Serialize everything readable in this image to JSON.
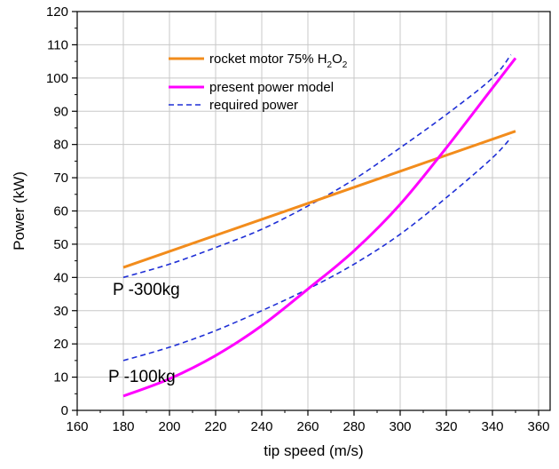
{
  "chart_data": {
    "type": "line",
    "xlabel": "tip speed (m/s)",
    "ylabel": "Power (kW)",
    "xlim": [
      160,
      365
    ],
    "ylim": [
      0,
      120
    ],
    "x_ticks": [
      160,
      180,
      200,
      220,
      240,
      260,
      280,
      300,
      320,
      340,
      360
    ],
    "y_ticks": [
      0,
      10,
      20,
      30,
      40,
      50,
      60,
      70,
      80,
      90,
      100,
      110,
      120
    ],
    "grid": true,
    "legend_position": "top-center",
    "series": [
      {
        "name": "rocket motor 75% H2O2",
        "legend_main": "rocket motor 75% H",
        "legend_sub1": "2",
        "legend_mid": "O",
        "legend_sub2": "2",
        "color": "#f28c1c",
        "style": "solid",
        "x": [
          180,
          350
        ],
        "y": [
          43,
          84
        ]
      },
      {
        "name": "present power model",
        "color": "#ff00ff",
        "style": "solid",
        "x": [
          180,
          200,
          220,
          240,
          260,
          280,
          300,
          320,
          340,
          350
        ],
        "y": [
          4.3,
          9.5,
          16.5,
          25.5,
          36.5,
          48,
          62,
          79,
          97,
          106
        ]
      },
      {
        "name": "required power",
        "color": "#1f2fd6",
        "style": "dashed",
        "curves": [
          {
            "label": "P -300kg",
            "x": [
              180,
              200,
              220,
              240,
              260,
              280,
              300,
              320,
              340,
              348
            ],
            "y": [
              40,
              44,
              49,
              54.5,
              61.5,
              69.5,
              79,
              89,
              100,
              107
            ]
          },
          {
            "label": "P -100kg",
            "x": [
              180,
              200,
              220,
              240,
              260,
              280,
              300,
              320,
              340,
              348
            ],
            "y": [
              15,
              19,
              24,
              30,
              36.5,
              44,
              53,
              64,
              76,
              82
            ]
          }
        ]
      }
    ],
    "annotations": [
      "P -300kg",
      "P -100kg"
    ]
  }
}
